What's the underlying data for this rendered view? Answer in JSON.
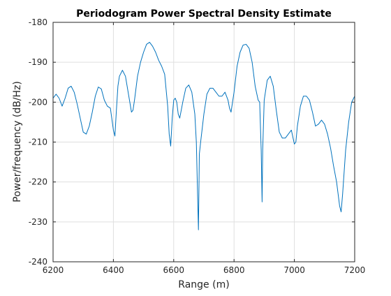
{
  "chart_data": {
    "type": "line",
    "title": "Periodogram Power Spectral Density Estimate",
    "xlabel": "Range (m)",
    "ylabel": "Power/frequency (dB/Hz)",
    "xlim": [
      6200,
      7200
    ],
    "ylim": [
      -240,
      -180
    ],
    "xticks": [
      6200,
      6400,
      6600,
      6800,
      7000,
      7200
    ],
    "yticks": [
      -240,
      -230,
      -220,
      -210,
      -200,
      -190,
      -180
    ],
    "grid": true,
    "line_color": "#0072BD",
    "series": [
      {
        "x": [
          6200,
          6210,
          6220,
          6230,
          6240,
          6250,
          6260,
          6270,
          6280,
          6290,
          6300,
          6310,
          6320,
          6330,
          6340,
          6350,
          6360,
          6370,
          6380,
          6390,
          6400,
          6405,
          6410,
          6415,
          6420,
          6430,
          6440,
          6450,
          6460,
          6465,
          6470,
          6480,
          6490,
          6500,
          6510,
          6520,
          6530,
          6540,
          6550,
          6560,
          6570,
          6580,
          6585,
          6590,
          6595,
          6600,
          6605,
          6610,
          6615,
          6620,
          6630,
          6640,
          6650,
          6660,
          6670,
          6675,
          6680,
          6682,
          6685,
          6690,
          6700,
          6710,
          6720,
          6730,
          6740,
          6750,
          6760,
          6770,
          6780,
          6785,
          6790,
          6800,
          6810,
          6820,
          6830,
          6840,
          6850,
          6860,
          6870,
          6880,
          6885,
          6890,
          6893,
          6895,
          6900,
          6910,
          6920,
          6930,
          6940,
          6950,
          6960,
          6970,
          6980,
          6990,
          7000,
          7005,
          7010,
          7020,
          7030,
          7040,
          7050,
          7060,
          7070,
          7080,
          7090,
          7100,
          7110,
          7120,
          7130,
          7140,
          7150,
          7155,
          7160,
          7170,
          7180,
          7190,
          7200
        ],
        "values": [
          -199,
          -198,
          -199,
          -201,
          -199,
          -196.5,
          -196,
          -197.5,
          -200.5,
          -204,
          -207.5,
          -208,
          -206,
          -202.5,
          -198.5,
          -196.2,
          -196.7,
          -199.5,
          -201,
          -201.5,
          -207,
          -208.5,
          -202,
          -196,
          -193.5,
          -192,
          -193.5,
          -198,
          -202.5,
          -202,
          -199.5,
          -193.5,
          -190,
          -187.5,
          -185.5,
          -185,
          -186,
          -187.5,
          -189.5,
          -191,
          -193,
          -201,
          -208,
          -211,
          -204,
          -199.5,
          -199,
          -200,
          -203,
          -204,
          -200,
          -196.5,
          -195.7,
          -197.5,
          -203,
          -210,
          -226,
          -232,
          -213,
          -209.5,
          -203,
          -198,
          -196.5,
          -196.5,
          -197.5,
          -198.5,
          -198.5,
          -197.5,
          -199.5,
          -201.5,
          -202.5,
          -197.5,
          -191,
          -187.5,
          -185.7,
          -185.5,
          -186.5,
          -190,
          -196,
          -199.5,
          -200,
          -212,
          -225,
          -212,
          -199.5,
          -194.5,
          -193.5,
          -196,
          -202,
          -207.5,
          -209,
          -209,
          -208,
          -207,
          -210.5,
          -210,
          -206,
          -201,
          -198.5,
          -198.5,
          -199.5,
          -202.5,
          -206,
          -205.5,
          -204.5,
          -205.5,
          -208,
          -211.5,
          -216,
          -220,
          -226,
          -227.5,
          -223,
          -212,
          -205,
          -200,
          -198.5
        ]
      }
    ]
  }
}
